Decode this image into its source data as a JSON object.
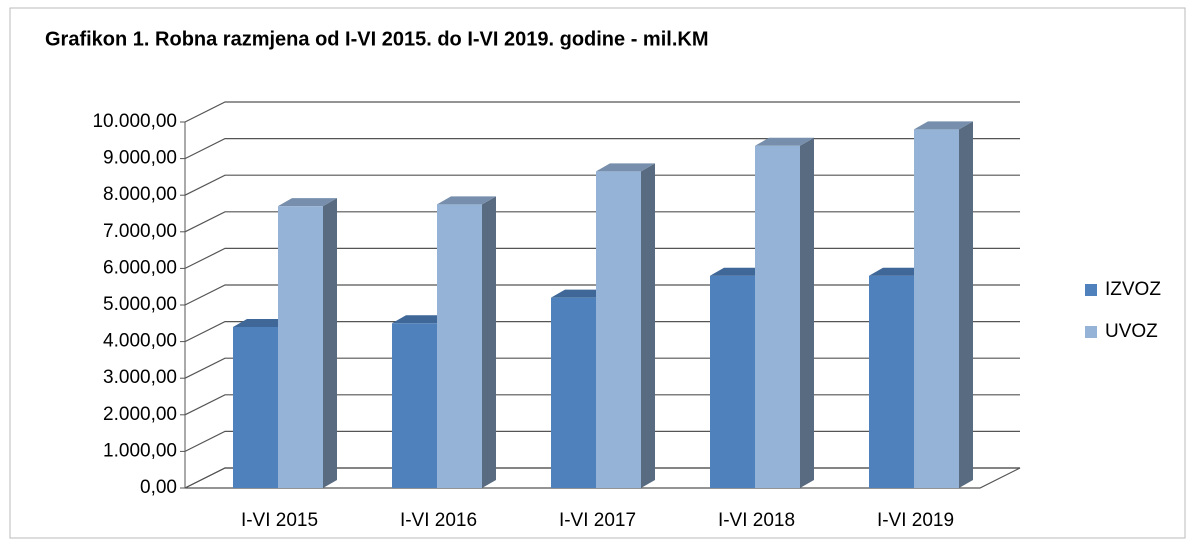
{
  "chart_data": {
    "type": "bar3d",
    "title": "Grafikon 1. Robna razmjena od I-VI 2015. do I-VI 2019. godine - mil.KM",
    "categories": [
      "I-VI 2015",
      "I-VI 2016",
      "I-VI 2017",
      "I-VI 2018",
      "I-VI 2019"
    ],
    "series": [
      {
        "name": "IZVOZ",
        "color": "#4f81bd",
        "values": [
          4400,
          4500,
          5200,
          5800,
          5800
        ]
      },
      {
        "name": "UVOZ",
        "color": "#95b3d7",
        "values": [
          7700,
          7750,
          8650,
          9350,
          9800
        ]
      }
    ],
    "ylim": [
      0,
      10000
    ],
    "yticks": [
      {
        "value": 0,
        "label": "0,00"
      },
      {
        "value": 1000,
        "label": "1.000,00"
      },
      {
        "value": 2000,
        "label": "2.000,00"
      },
      {
        "value": 3000,
        "label": "3.000,00"
      },
      {
        "value": 4000,
        "label": "4.000,00"
      },
      {
        "value": 5000,
        "label": "5.000,00"
      },
      {
        "value": 6000,
        "label": "6.000,00"
      },
      {
        "value": 7000,
        "label": "7.000,00"
      },
      {
        "value": 8000,
        "label": "8.000,00"
      },
      {
        "value": 9000,
        "label": "9.000,00"
      },
      {
        "value": 10000,
        "label": "10.000,00"
      }
    ],
    "grid": true,
    "legend": "right"
  }
}
